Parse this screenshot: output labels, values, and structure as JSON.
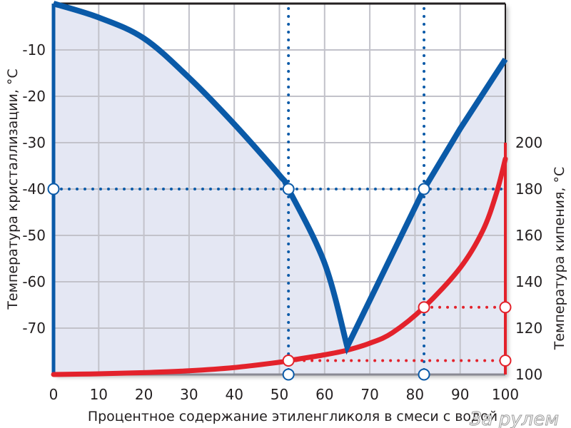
{
  "chart_data": {
    "type": "line",
    "xlabel": "Процентное содержание этиленгликоля в смеси с водой",
    "ylabel_left": "Температура кристаллизации, °C",
    "ylabel_right": "Температура кипения, °C",
    "xlim": [
      0,
      100
    ],
    "ylim_left": [
      -80,
      0
    ],
    "ylim_right": [
      100,
      260
    ],
    "x_ticks": [
      "0",
      "10",
      "20",
      "30",
      "40",
      "50",
      "60",
      "70",
      "80",
      "90",
      "100"
    ],
    "y_ticks_left": [
      {
        "value": -10,
        "label": "-10"
      },
      {
        "value": -20,
        "label": "-20"
      },
      {
        "value": -30,
        "label": "-30"
      },
      {
        "value": -40,
        "label": "-40"
      },
      {
        "value": -50,
        "label": "-50"
      },
      {
        "value": -60,
        "label": "-60"
      },
      {
        "value": -70,
        "label": "-70"
      }
    ],
    "y_ticks_right": [
      {
        "value": 100,
        "label": "100"
      },
      {
        "value": 120,
        "label": "120"
      },
      {
        "value": 140,
        "label": "140"
      },
      {
        "value": 160,
        "label": "160"
      },
      {
        "value": 180,
        "label": "180"
      },
      {
        "value": 200,
        "label": "200"
      }
    ],
    "grid": true,
    "series": [
      {
        "name": "Температура кристаллизации",
        "axis": "left",
        "color": "#0a5aa8",
        "x": [
          0,
          10,
          20,
          30,
          40,
          50,
          52,
          60,
          65,
          70,
          82,
          90,
          100
        ],
        "y": [
          0,
          -3,
          -7.5,
          -16,
          -26,
          -37,
          -40,
          -56,
          -74,
          -64,
          -40,
          -27,
          -12
        ]
      },
      {
        "name": "Температура кипения",
        "axis": "right",
        "color": "#e3222b",
        "x": [
          0,
          10,
          20,
          30,
          40,
          50,
          52,
          60,
          65,
          70,
          75,
          82,
          90,
          95,
          98,
          100
        ],
        "y": [
          100,
          100.3,
          100.8,
          101.6,
          103,
          105.3,
          106,
          108.5,
          110.5,
          113.5,
          118,
          129,
          146,
          162,
          178,
          193
        ]
      }
    ],
    "reference_lines": {
      "freeze_level": -40,
      "concentrations": [
        52,
        82
      ],
      "boil_levels": [
        106,
        129
      ]
    },
    "colors": {
      "fill": "#e4e7f3",
      "grid": "#c2c2ca",
      "blue": "#0a5aa8",
      "red": "#e3222b"
    }
  },
  "watermark": "За рулем"
}
